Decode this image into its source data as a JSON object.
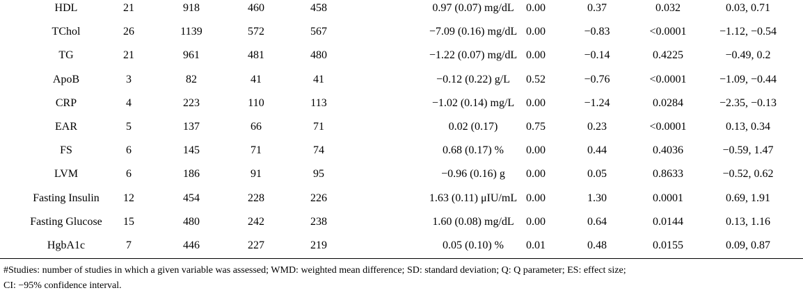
{
  "table": {
    "rows": [
      [
        "HDL",
        "21",
        "918",
        "460",
        "458",
        "0.97 (0.07) mg/dL",
        "0.00",
        "0.37",
        "0.032",
        "0.03, 0.71"
      ],
      [
        "TChol",
        "26",
        "1139",
        "572",
        "567",
        "−7.09 (0.16) mg/dL",
        "0.00",
        "−0.83",
        "<0.0001",
        "−1.12, −0.54"
      ],
      [
        "TG",
        "21",
        "961",
        "481",
        "480",
        "−1.22 (0.07) mg/dL",
        "0.00",
        "−0.14",
        "0.4225",
        "−0.49, 0.2"
      ],
      [
        "ApoB",
        "3",
        "82",
        "41",
        "41",
        "−0.12 (0.22) g/L",
        "0.52",
        "−0.76",
        "<0.0001",
        "−1.09, −0.44"
      ],
      [
        "CRP",
        "4",
        "223",
        "110",
        "113",
        "−1.02 (0.14) mg/L",
        "0.00",
        "−1.24",
        "0.0284",
        "−2.35, −0.13"
      ],
      [
        "EAR",
        "5",
        "137",
        "66",
        "71",
        "0.02 (0.17)",
        "0.75",
        "0.23",
        "<0.0001",
        "0.13, 0.34"
      ],
      [
        "FS",
        "6",
        "145",
        "71",
        "74",
        "0.68 (0.17) %",
        "0.00",
        "0.44",
        "0.4036",
        "−0.59, 1.47"
      ],
      [
        "LVM",
        "6",
        "186",
        "91",
        "95",
        "−0.96 (0.16) g",
        "0.00",
        "0.05",
        "0.8633",
        "−0.52, 0.62"
      ],
      [
        "Fasting Insulin",
        "12",
        "454",
        "228",
        "226",
        "1.63 (0.11) μIU/mL",
        "0.00",
        "1.30",
        "0.0001",
        "0.69, 1.91"
      ],
      [
        "Fasting Glucose",
        "15",
        "480",
        "242",
        "238",
        "1.60 (0.08) mg/dL",
        "0.00",
        "0.64",
        "0.0144",
        "0.13, 1.16"
      ],
      [
        "HgbA1c",
        "7",
        "446",
        "227",
        "219",
        "0.05 (0.10) %",
        "0.01",
        "0.48",
        "0.0155",
        "0.09, 0.87"
      ]
    ]
  },
  "footnote": [
    "#Studies: number of studies in which a given variable was assessed; WMD: weighted mean difference; SD: standard deviation; Q: Q parameter; ES: effect size;",
    "CI: −95% confidence interval."
  ]
}
